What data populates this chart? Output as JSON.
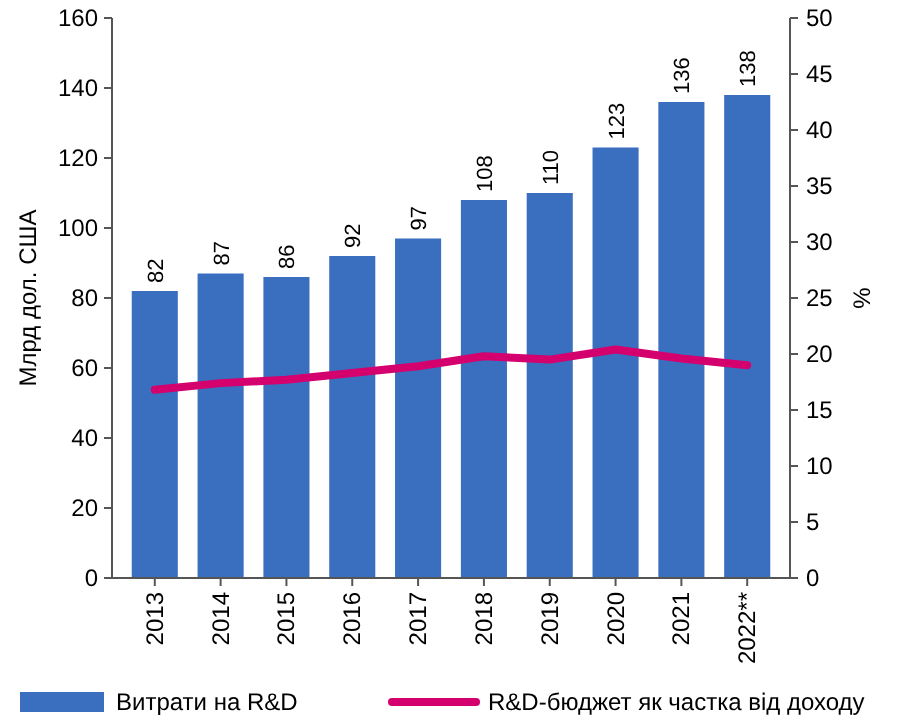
{
  "chart_data": {
    "type": "bar",
    "ylabel": "Млрд дол. США",
    "y2label": "%",
    "categories": [
      "2013",
      "2014",
      "2015",
      "2016",
      "2017",
      "2018",
      "2019",
      "2020",
      "2021",
      "2022**"
    ],
    "series": [
      {
        "name": "Витрати на R&D",
        "color": "#3a6fbf",
        "values": [
          82,
          87,
          86,
          92,
          97,
          108,
          110,
          123,
          136,
          138
        ],
        "value_labels": [
          "82",
          "87",
          "86",
          "92",
          "97",
          "108",
          "110",
          "123",
          "136",
          "138"
        ]
      },
      {
        "name": "R&D-бюджет як частка від доходу",
        "type": "line",
        "axis": "y2",
        "color": "#d4006e",
        "values": [
          16.8,
          17.4,
          17.7,
          18.3,
          18.9,
          19.8,
          19.5,
          20.4,
          19.6,
          19.0
        ]
      }
    ],
    "ylim": [
      0,
      160
    ],
    "yticks": [
      0,
      20,
      40,
      60,
      80,
      100,
      120,
      140,
      160
    ],
    "y2lim": [
      0,
      50
    ],
    "y2ticks": [
      0,
      5,
      10,
      15,
      20,
      25,
      30,
      35,
      40,
      45,
      50
    ],
    "legend": "bottom",
    "grid": false,
    "marker": "none",
    "line_style": "solid"
  }
}
